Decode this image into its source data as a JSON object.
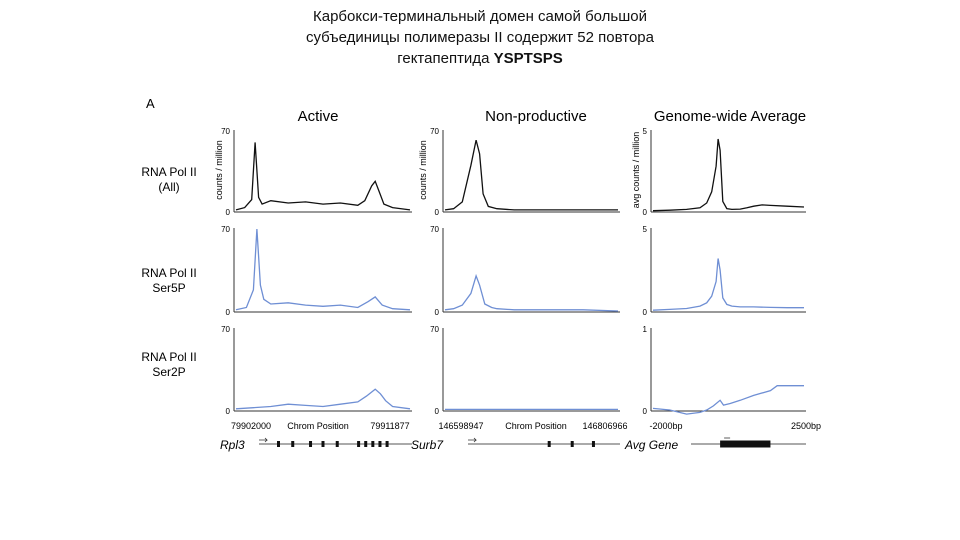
{
  "slide": {
    "title_lines": [
      "Карбокси-терминальный домен самой большой",
      "субъединицы полимеразы II содержит 52 повтора",
      "гектапептида "
    ],
    "title_bold": "YSPTSPS"
  },
  "figure": {
    "panel_letter": "A",
    "colors": {
      "black": "#111111",
      "blue": "#6f8fd4",
      "gray": "#777777"
    },
    "columns": [
      {
        "key": "active",
        "title": "Active",
        "ylabel": "counts / million",
        "x_start": "79902000",
        "x_end": "79911877",
        "x_label": "Chrom Position",
        "gene": "Rpl3"
      },
      {
        "key": "nonprod",
        "title": "Non-productive",
        "ylabel": "counts / million",
        "x_start": "146598947",
        "x_end": "146806966",
        "x_label": "Chrom Position",
        "gene": "Surb7"
      },
      {
        "key": "genome",
        "title": "Genome-wide Average",
        "ylabel": "avg counts / million",
        "x_start": "-2000bp",
        "x_end": "2500bp",
        "x_label": "",
        "gene": "Avg Gene"
      }
    ],
    "rows": [
      {
        "label_lines": [
          "RNA Pol II",
          "(All)"
        ],
        "color": "black"
      },
      {
        "label_lines": [
          "RNA Pol II",
          "Ser5P"
        ],
        "color": "blue"
      },
      {
        "label_lines": [
          "RNA Pol II",
          "Ser2P"
        ],
        "color": "blue"
      }
    ]
  },
  "chart_data": [
    {
      "type": "line",
      "row": "RNA Pol II (All)",
      "column": "Active",
      "ylim": [
        0,
        70
      ],
      "yticks": [
        "0",
        "70"
      ],
      "x": [
        0,
        0.05,
        0.09,
        0.11,
        0.13,
        0.15,
        0.2,
        0.3,
        0.4,
        0.5,
        0.6,
        0.7,
        0.74,
        0.78,
        0.8,
        0.82,
        0.85,
        0.9,
        1
      ],
      "y": [
        1,
        3,
        10,
        60,
        12,
        6,
        9,
        7,
        8,
        6,
        7,
        5,
        9,
        22,
        26,
        18,
        6,
        3,
        1
      ]
    },
    {
      "type": "line",
      "row": "RNA Pol II Ser5P",
      "column": "Active",
      "ylim": [
        0,
        70
      ],
      "yticks": [
        "0",
        "70"
      ],
      "x": [
        0,
        0.06,
        0.1,
        0.12,
        0.14,
        0.16,
        0.2,
        0.3,
        0.4,
        0.5,
        0.6,
        0.7,
        0.76,
        0.8,
        0.84,
        0.9,
        1
      ],
      "y": [
        1,
        3,
        18,
        70,
        22,
        10,
        6,
        7,
        5,
        4,
        5,
        3,
        8,
        12,
        5,
        2,
        1
      ]
    },
    {
      "type": "line",
      "row": "RNA Pol II Ser2P",
      "column": "Active",
      "ylim": [
        0,
        70
      ],
      "yticks": [
        "0",
        "70"
      ],
      "x": [
        0,
        0.1,
        0.2,
        0.3,
        0.4,
        0.5,
        0.6,
        0.7,
        0.75,
        0.8,
        0.83,
        0.86,
        0.9,
        1
      ],
      "y": [
        1,
        2,
        3,
        5,
        4,
        3,
        5,
        7,
        12,
        18,
        14,
        8,
        3,
        1
      ]
    },
    {
      "type": "line",
      "row": "RNA Pol II (All)",
      "column": "Non-productive",
      "ylim": [
        0,
        70
      ],
      "yticks": [
        "0",
        "70"
      ],
      "x": [
        0,
        0.05,
        0.1,
        0.15,
        0.18,
        0.2,
        0.22,
        0.25,
        0.3,
        0.4,
        0.6,
        0.8,
        1
      ],
      "y": [
        1,
        2,
        8,
        40,
        62,
        50,
        15,
        4,
        2,
        1,
        1,
        1,
        1
      ]
    },
    {
      "type": "line",
      "row": "RNA Pol II Ser5P",
      "column": "Non-productive",
      "ylim": [
        0,
        70
      ],
      "yticks": [
        "0",
        "70"
      ],
      "x": [
        0,
        0.05,
        0.1,
        0.15,
        0.18,
        0.2,
        0.23,
        0.27,
        0.3,
        0.4,
        0.6,
        0.8,
        1
      ],
      "y": [
        1,
        2,
        5,
        15,
        30,
        22,
        6,
        3,
        2,
        1,
        1,
        1,
        0
      ]
    },
    {
      "type": "line",
      "row": "RNA Pol II Ser2P",
      "column": "Non-productive",
      "ylim": [
        0,
        70
      ],
      "yticks": [
        "0",
        "70"
      ],
      "x": [
        0,
        0.5,
        1
      ],
      "y": [
        0.5,
        0.5,
        0.5
      ]
    },
    {
      "type": "line",
      "row": "RNA Pol II (All)",
      "column": "Genome-wide Average",
      "ylim": [
        0,
        5
      ],
      "yticks": [
        "0",
        "5"
      ],
      "x": [
        -2000,
        -1500,
        -1000,
        -600,
        -400,
        -250,
        -120,
        -60,
        0,
        80,
        200,
        350,
        600,
        800,
        1000,
        1250,
        1500,
        2000,
        2500
      ],
      "y": [
        0.02,
        0.05,
        0.1,
        0.2,
        0.5,
        1.2,
        2.8,
        4.5,
        3.8,
        0.6,
        0.15,
        0.1,
        0.12,
        0.2,
        0.3,
        0.38,
        0.35,
        0.3,
        0.25
      ]
    },
    {
      "type": "line",
      "row": "RNA Pol II Ser5P",
      "column": "Genome-wide Average",
      "ylim": [
        0,
        5
      ],
      "yticks": [
        "0",
        "5"
      ],
      "x": [
        -2000,
        -1500,
        -1000,
        -600,
        -400,
        -250,
        -120,
        -60,
        0,
        80,
        200,
        350,
        600,
        1000,
        1500,
        2000,
        2500
      ],
      "y": [
        0.05,
        0.1,
        0.15,
        0.3,
        0.5,
        0.9,
        1.8,
        3.2,
        2.5,
        0.8,
        0.4,
        0.3,
        0.25,
        0.25,
        0.22,
        0.2,
        0.2
      ]
    },
    {
      "type": "line",
      "row": "RNA Pol II Ser2P",
      "column": "Genome-wide Average",
      "ylim": [
        0,
        1
      ],
      "yticks": [
        "0",
        "1"
      ],
      "x": [
        -2000,
        -1500,
        -1000,
        -600,
        -400,
        -200,
        0,
        100,
        300,
        600,
        1000,
        1500,
        1700,
        2000,
        2500
      ],
      "y": [
        0.02,
        0,
        -0.05,
        -0.03,
        0,
        0.05,
        0.12,
        0.06,
        0.08,
        0.12,
        0.18,
        0.24,
        0.3,
        0.3,
        0.3
      ]
    }
  ],
  "gene_models": [
    {
      "gene": "Rpl3",
      "column": "Active",
      "exons": [
        0.25,
        0.33,
        0.43,
        0.5,
        0.58,
        0.7,
        0.74,
        0.78,
        0.82,
        0.86
      ]
    },
    {
      "gene": "Surb7",
      "column": "Non-productive",
      "exons": [
        0.6,
        0.73,
        0.85
      ]
    },
    {
      "gene": "Avg Gene",
      "column": "Genome-wide Average",
      "gene_span": [
        0,
        1500
      ]
    }
  ]
}
